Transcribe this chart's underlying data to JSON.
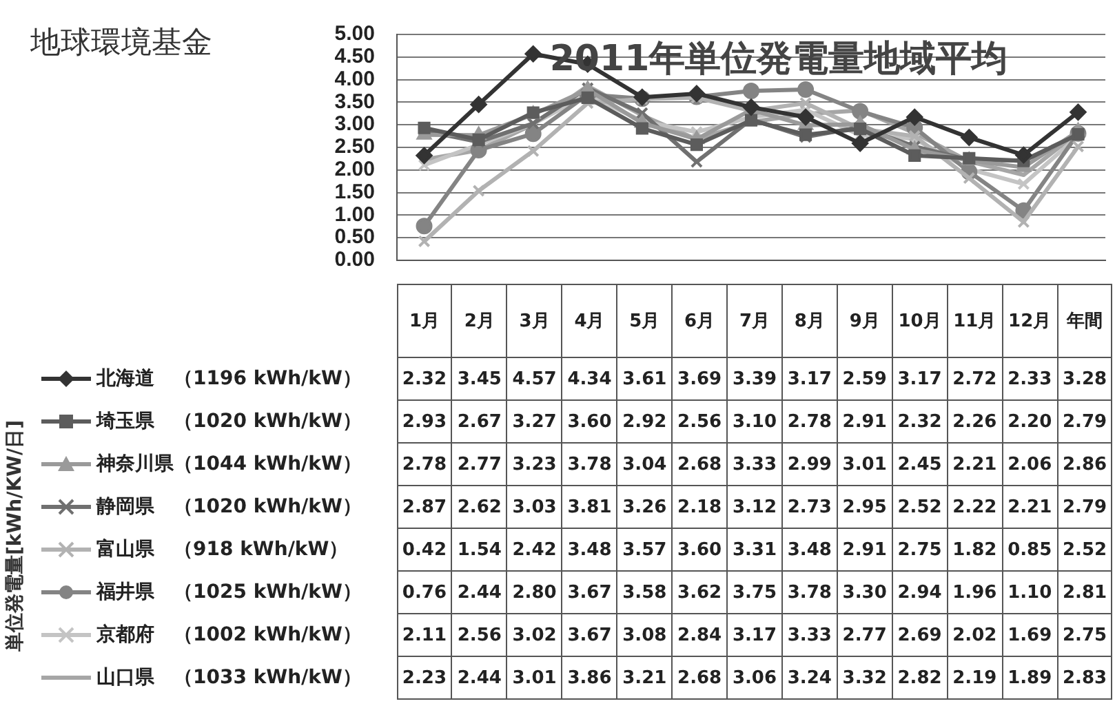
{
  "chart_data": {
    "type": "line",
    "title": "2011年単位発電量地域平均",
    "annotations": [
      "地球環境基金",
      "単位発電量[kWh/KW/日]"
    ],
    "categories": [
      "1月",
      "2月",
      "3月",
      "4月",
      "5月",
      "6月",
      "7月",
      "8月",
      "9月",
      "10月",
      "11月",
      "12月",
      "年間"
    ],
    "ylim": [
      0,
      5
    ],
    "yticks": [
      {
        "value": 0,
        "label": "0.00"
      },
      {
        "value": 0.5,
        "label": "0.50"
      },
      {
        "value": 1,
        "label": "1.00"
      },
      {
        "value": 1.5,
        "label": "1.50"
      },
      {
        "value": 2,
        "label": "2.00"
      },
      {
        "value": 2.5,
        "label": "2.50"
      },
      {
        "value": 3,
        "label": "3.00"
      },
      {
        "value": 3.5,
        "label": "3.50"
      },
      {
        "value": 4,
        "label": "4.00"
      },
      {
        "value": 4.5,
        "label": "4.50"
      },
      {
        "value": 5,
        "label": "5.00"
      }
    ],
    "grid": "y",
    "legend": "bottom",
    "series": [
      {
        "name": "北海道　（1196 kWh/kW）",
        "color": "#333333",
        "marker": "diamond",
        "values": [
          2.32,
          3.45,
          4.57,
          4.34,
          3.61,
          3.69,
          3.39,
          3.17,
          2.59,
          3.17,
          2.72,
          2.33,
          3.28
        ],
        "value_labels": [
          "2.32",
          "3.45",
          "4.57",
          "4.34",
          "3.61",
          "3.69",
          "3.39",
          "3.17",
          "2.59",
          "3.17",
          "2.72",
          "2.33",
          "3.28"
        ]
      },
      {
        "name": "埼玉県　（1020 kWh/kW）",
        "color": "#5c5c5c",
        "marker": "square",
        "values": [
          2.93,
          2.67,
          3.27,
          3.6,
          2.92,
          2.56,
          3.1,
          2.78,
          2.91,
          2.32,
          2.26,
          2.2,
          2.79
        ],
        "value_labels": [
          "2.93",
          "2.67",
          "3.27",
          "3.60",
          "2.92",
          "2.56",
          "3.10",
          "2.78",
          "2.91",
          "2.32",
          "2.26",
          "2.20",
          "2.79"
        ]
      },
      {
        "name": "神奈川県（1044 kWh/kW）",
        "color": "#9a9a9a",
        "marker": "triangle",
        "values": [
          2.78,
          2.77,
          3.23,
          3.78,
          3.04,
          2.68,
          3.33,
          2.99,
          3.01,
          2.45,
          2.21,
          2.06,
          2.86
        ],
        "value_labels": [
          "2.78",
          "2.77",
          "3.23",
          "3.78",
          "3.04",
          "2.68",
          "3.33",
          "2.99",
          "3.01",
          "2.45",
          "2.21",
          "2.06",
          "2.86"
        ]
      },
      {
        "name": "静岡県　（1020 kWh/kW）",
        "color": "#707070",
        "marker": "cross",
        "values": [
          2.87,
          2.62,
          3.03,
          3.81,
          3.26,
          2.18,
          3.12,
          2.73,
          2.95,
          2.52,
          2.22,
          2.21,
          2.79
        ],
        "value_labels": [
          "2.87",
          "2.62",
          "3.03",
          "3.81",
          "3.26",
          "2.18",
          "3.12",
          "2.73",
          "2.95",
          "2.52",
          "2.22",
          "2.21",
          "2.79"
        ]
      },
      {
        "name": "富山県　（918 kWh/kW）",
        "color": "#b2b2b2",
        "marker": "cross",
        "values": [
          0.42,
          1.54,
          2.42,
          3.48,
          3.57,
          3.6,
          3.31,
          3.48,
          2.91,
          2.75,
          1.82,
          0.85,
          2.52
        ],
        "value_labels": [
          "0.42",
          "1.54",
          "2.42",
          "3.48",
          "3.57",
          "3.60",
          "3.31",
          "3.48",
          "2.91",
          "2.75",
          "1.82",
          "0.85",
          "2.52"
        ]
      },
      {
        "name": "福井県　（1025 kWh/kW）",
        "color": "#848484",
        "marker": "circle",
        "values": [
          0.76,
          2.44,
          2.8,
          3.67,
          3.58,
          3.62,
          3.75,
          3.78,
          3.3,
          2.94,
          1.96,
          1.1,
          2.81
        ],
        "value_labels": [
          "0.76",
          "2.44",
          "2.80",
          "3.67",
          "3.58",
          "3.62",
          "3.75",
          "3.78",
          "3.30",
          "2.94",
          "1.96",
          "1.10",
          "2.81"
        ]
      },
      {
        "name": "京都府　（1002 kWh/kW）",
        "color": "#c4c4c4",
        "marker": "cross",
        "values": [
          2.11,
          2.56,
          3.02,
          3.67,
          3.08,
          2.84,
          3.17,
          3.33,
          2.77,
          2.69,
          2.02,
          1.69,
          2.75
        ],
        "value_labels": [
          "2.11",
          "2.56",
          "3.02",
          "3.67",
          "3.08",
          "2.84",
          "3.17",
          "3.33",
          "2.77",
          "2.69",
          "2.02",
          "1.69",
          "2.75"
        ]
      },
      {
        "name": "山口県　（1033 kWh/kW）",
        "color": "#a6a6a6",
        "marker": "none",
        "values": [
          2.23,
          2.44,
          3.01,
          3.86,
          3.21,
          2.68,
          3.06,
          3.24,
          3.32,
          2.82,
          2.19,
          1.89,
          2.83
        ],
        "value_labels": [
          "2.23",
          "2.44",
          "3.01",
          "3.86",
          "3.21",
          "2.68",
          "3.06",
          "3.24",
          "3.32",
          "2.82",
          "2.19",
          "1.89",
          "2.83"
        ]
      }
    ]
  }
}
